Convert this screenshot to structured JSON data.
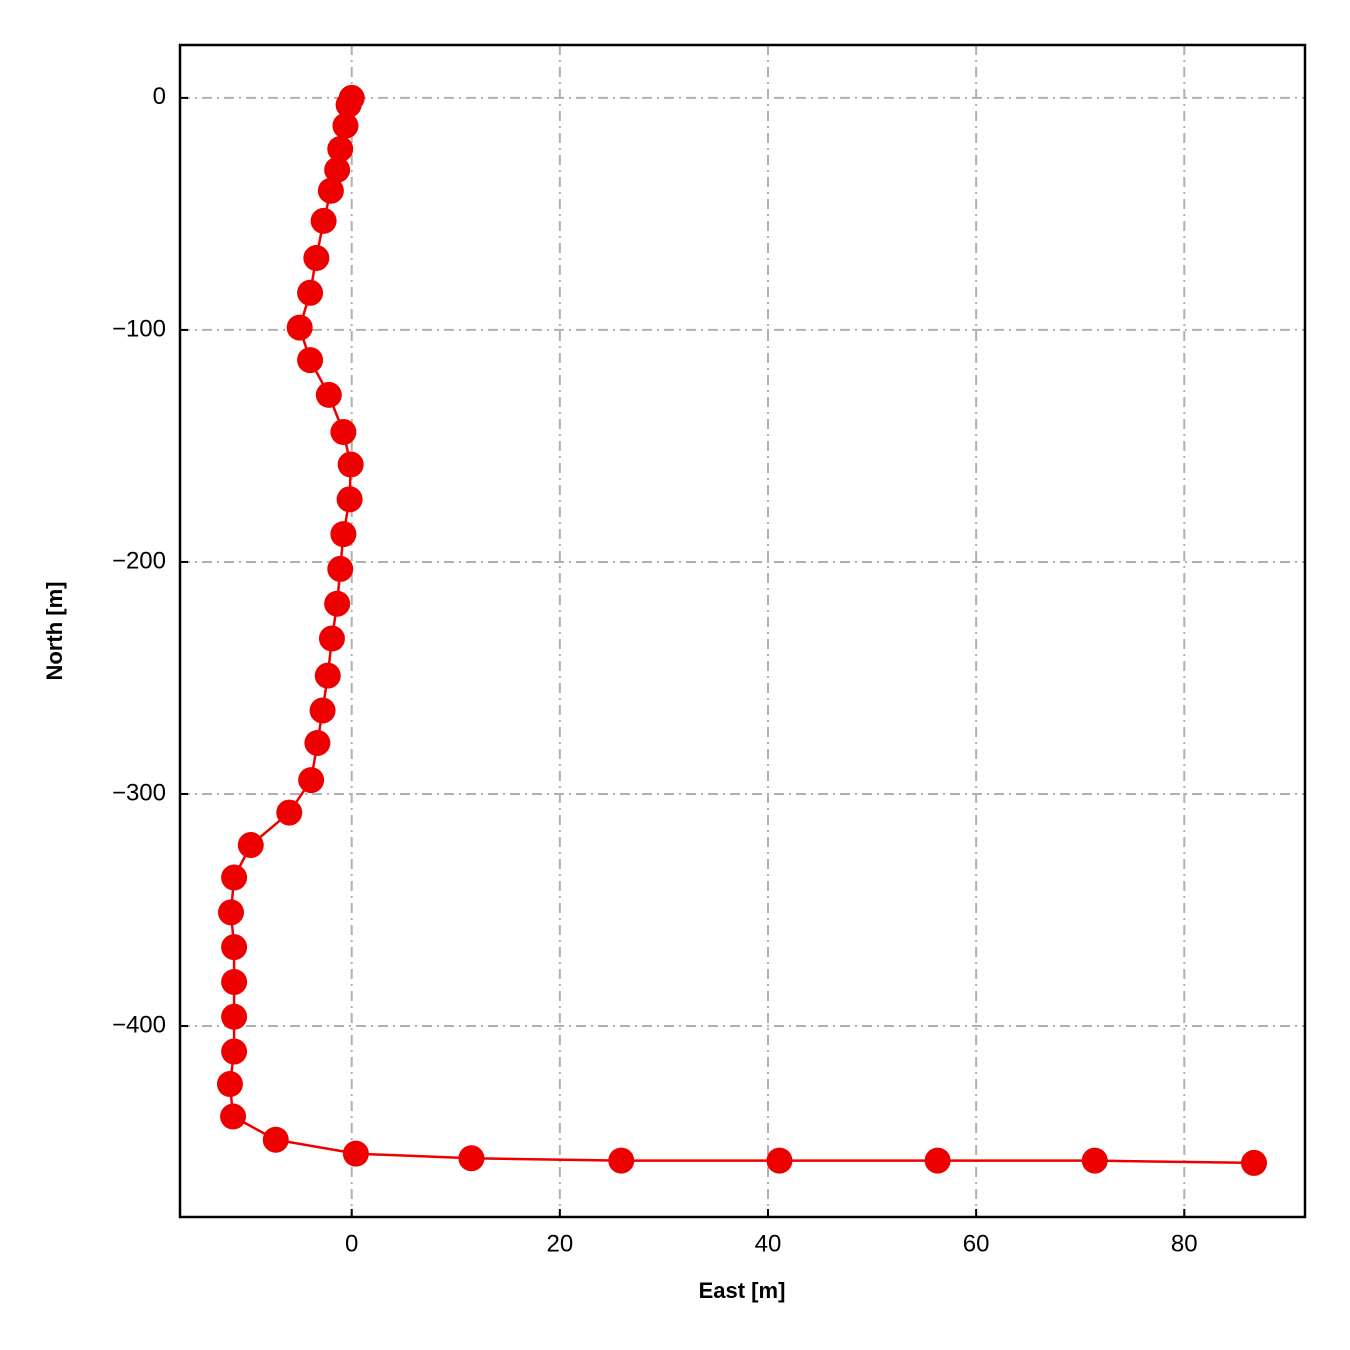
{
  "chart_data": {
    "type": "line",
    "x_label": "East [m]",
    "y_label": "North [m]",
    "x": [
      0,
      -0.3,
      -0.6,
      -1.1,
      -1.4,
      -2.0,
      -2.7,
      -3.4,
      -4.0,
      -5.0,
      -4.0,
      -2.2,
      -0.8,
      -0.1,
      -0.2,
      -0.8,
      -1.1,
      -1.4,
      -1.9,
      -2.3,
      -2.8,
      -3.3,
      -3.9,
      -6.0,
      -9.7,
      -11.3,
      -11.6,
      -11.3,
      -11.3,
      -11.3,
      -11.3,
      -11.7,
      -11.4,
      -7.3,
      0.4,
      11.5,
      25.9,
      41.1,
      56.3,
      71.4,
      86.7
    ],
    "values": [
      0,
      -3,
      -12,
      -22,
      -31,
      -40,
      -53,
      -69,
      -84,
      -99,
      -113,
      -128,
      -144,
      -158,
      -173,
      -188,
      -203,
      -218,
      -233,
      -249,
      -264,
      -278,
      -294,
      -308,
      -322,
      -336,
      -351,
      -366,
      -381,
      -396,
      -411,
      -425,
      -439,
      -449,
      -455,
      -457,
      -458,
      -458,
      -458,
      -458,
      -459
    ],
    "color": "#ee0000",
    "xlim": [
      -16.5,
      91.6
    ],
    "ylim": [
      -482.3,
      22.8
    ],
    "xticks": [
      0,
      20,
      40,
      60,
      80
    ],
    "yticks": [
      0,
      {
        "value": -100,
        "label": "−100"
      },
      {
        "value": -200,
        "label": "−200"
      },
      {
        "value": -300,
        "label": "−300"
      },
      {
        "value": -400,
        "label": "−400"
      }
    ],
    "grid": true
  }
}
